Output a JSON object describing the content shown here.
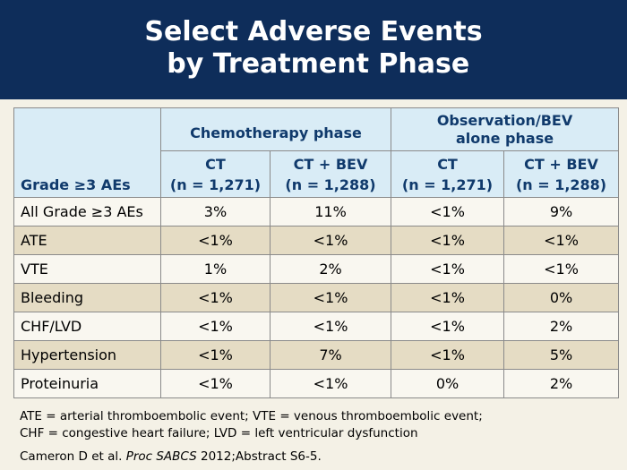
{
  "title": {
    "line1": "Select Adverse Events",
    "line2": " by Treatment Phase"
  },
  "table": {
    "corner_label": "Grade ≥3 AEs",
    "groups": [
      "Chemotherapy phase",
      "Observation/BEV alone phase"
    ],
    "group2_lines": [
      "Observation/BEV",
      "alone phase"
    ],
    "columns": [
      {
        "arm": "CT",
        "n": "(n = 1,271)"
      },
      {
        "arm": "CT + BEV",
        "n": "(n = 1,288)"
      },
      {
        "arm": "CT",
        "n": "(n = 1,271)"
      },
      {
        "arm": "CT + BEV",
        "n": "(n = 1,288)"
      }
    ],
    "rows": [
      {
        "label": "All Grade ≥3 AEs",
        "values": [
          "3%",
          "11%",
          "<1%",
          "9%"
        ]
      },
      {
        "label": "ATE",
        "values": [
          "<1%",
          "<1%",
          "<1%",
          "<1%"
        ]
      },
      {
        "label": "VTE",
        "values": [
          "1%",
          "2%",
          "<1%",
          "<1%"
        ]
      },
      {
        "label": "Bleeding",
        "values": [
          "<1%",
          "<1%",
          "<1%",
          "0%"
        ]
      },
      {
        "label": "CHF/LVD",
        "values": [
          "<1%",
          "<1%",
          "<1%",
          "2%"
        ]
      },
      {
        "label": "Hypertension",
        "values": [
          "<1%",
          "7%",
          "<1%",
          "5%"
        ]
      },
      {
        "label": "Proteinuria",
        "values": [
          "<1%",
          "<1%",
          "0%",
          "2%"
        ]
      }
    ]
  },
  "footnote": {
    "line1": "ATE = arterial thromboembolic event; VTE = venous thromboembolic event;",
    "line2": "CHF = congestive heart failure; LVD = left ventricular dysfunction"
  },
  "citation": {
    "authors": "Cameron D et al. ",
    "journal": "Proc SABCS",
    "rest": " 2012;Abstract S6-5."
  },
  "colors": {
    "header_bg": "#0e2d5a",
    "table_header_bg": "#d9ecf6",
    "row_alt_bg": "#e5dcc4",
    "page_bg": "#f4f1e6"
  }
}
